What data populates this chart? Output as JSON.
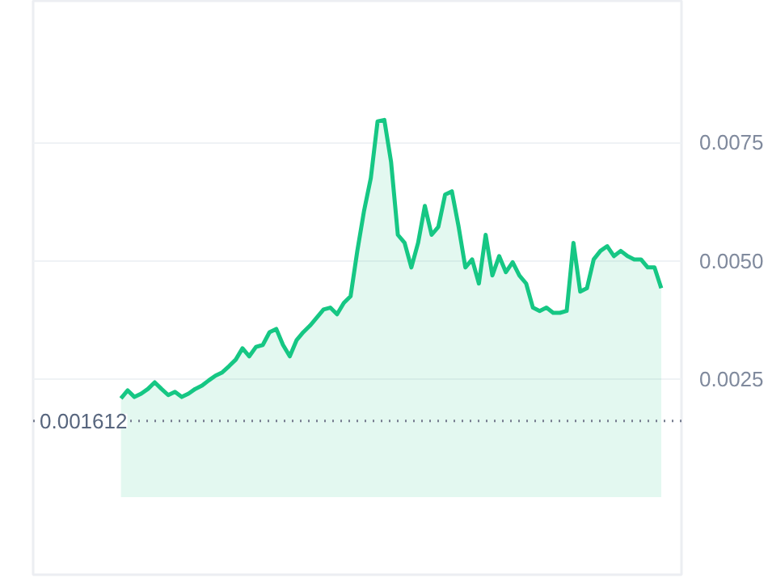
{
  "chart_data": {
    "type": "area",
    "color": "#16c784",
    "categories": [
      null,
      null,
      null,
      null,
      null,
      null,
      null,
      null,
      null,
      null,
      null,
      null,
      null,
      null,
      null,
      null,
      null,
      null,
      null,
      null,
      null,
      null,
      null,
      null,
      null,
      null,
      null,
      null,
      null,
      null,
      null,
      null,
      null,
      null,
      null,
      null,
      null,
      null,
      null,
      null,
      null,
      null,
      null,
      null,
      null,
      null,
      null,
      null,
      null,
      null,
      null,
      null,
      null,
      null,
      null,
      null,
      null,
      null,
      null,
      null,
      null,
      null,
      null,
      null,
      null,
      null,
      null,
      null,
      null,
      null,
      null,
      null,
      null,
      null,
      null,
      null,
      null,
      null,
      null,
      null,
      null
    ],
    "values": [
      0.00209,
      0.00226,
      0.00212,
      0.00219,
      0.00229,
      0.00243,
      0.00229,
      0.00216,
      0.00223,
      0.00212,
      0.00219,
      0.00229,
      0.00236,
      0.00247,
      0.00257,
      0.00264,
      0.00277,
      0.00291,
      0.00315,
      0.00298,
      0.00318,
      0.00322,
      0.00349,
      0.00356,
      0.00322,
      0.00298,
      0.00332,
      0.00349,
      0.00363,
      0.0038,
      0.00397,
      0.00401,
      0.00387,
      0.00411,
      0.00425,
      0.00521,
      0.00606,
      0.00675,
      0.00795,
      0.00798,
      0.00709,
      0.00555,
      0.00538,
      0.00486,
      0.00538,
      0.00616,
      0.00555,
      0.00572,
      0.0064,
      0.00647,
      0.00572,
      0.00486,
      0.00503,
      0.00452,
      0.00555,
      0.00469,
      0.0051,
      0.00476,
      0.00497,
      0.00469,
      0.00452,
      0.00401,
      0.00394,
      0.00401,
      0.0039,
      0.0039,
      0.00394,
      0.00538,
      0.00435,
      0.00442,
      0.00503,
      0.00521,
      0.00531,
      0.0051,
      0.00521,
      0.0051,
      0.00503,
      0.00503,
      0.00486,
      0.00486,
      0.00442
    ],
    "ylim": [
      -0.00164,
      0.0105
    ],
    "yticks": [
      0.0025,
      {
        "value": 0.005,
        "label": "0.0050"
      },
      0.0075
    ],
    "grid": "y",
    "tick_labels": "y",
    "ref_lines": [
      {
        "axis": "y",
        "value": 0.001612,
        "label": "0.001612",
        "line_style": "dotted",
        "color": "#777e90"
      }
    ]
  }
}
